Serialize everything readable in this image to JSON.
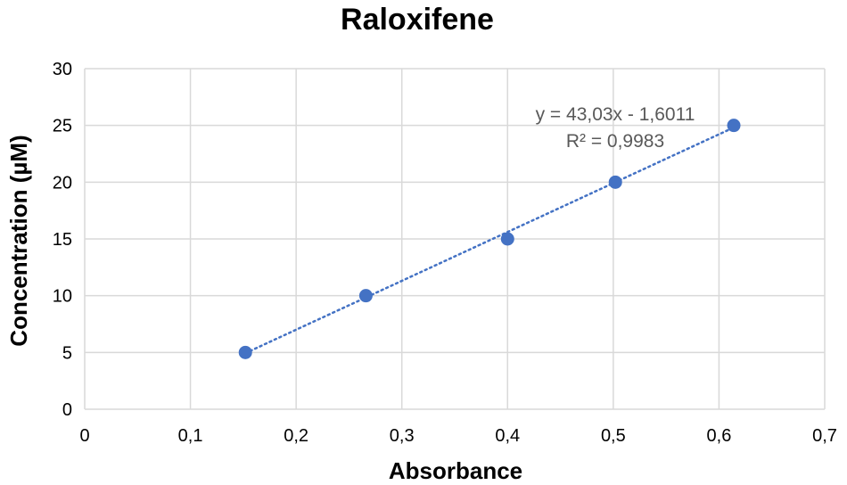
{
  "chart_data": {
    "type": "scatter",
    "title": "Raloxifene",
    "xlabel": "Absorbance",
    "ylabel": "Concentration (µM)",
    "xlim": [
      0,
      0.7
    ],
    "ylim": [
      0,
      30
    ],
    "x_ticks": [
      0,
      0.1,
      0.2,
      0.3,
      0.4,
      0.5,
      0.6,
      0.7
    ],
    "x_tick_labels": [
      "0",
      "0,1",
      "0,2",
      "0,3",
      "0,4",
      "0,5",
      "0,6",
      "0,7"
    ],
    "y_ticks": [
      0,
      5,
      10,
      15,
      20,
      25,
      30
    ],
    "y_tick_labels": [
      "0",
      "5",
      "10",
      "15",
      "20",
      "25",
      "30"
    ],
    "grid": true,
    "series": [
      {
        "x": [
          0.152,
          0.266,
          0.4,
          0.502,
          0.614
        ],
        "y": [
          5,
          10,
          15,
          20,
          25
        ],
        "color": "#4472c4",
        "marker": "circle"
      }
    ],
    "trendline": {
      "type": "linear",
      "slope": 43.03,
      "intercept": -1.6011,
      "x_range": [
        0.152,
        0.614
      ],
      "color": "#4472c4",
      "style": "dotted"
    },
    "annotations": [
      "y = 43,03x - 1,6011",
      "R² = 0,9983"
    ]
  }
}
